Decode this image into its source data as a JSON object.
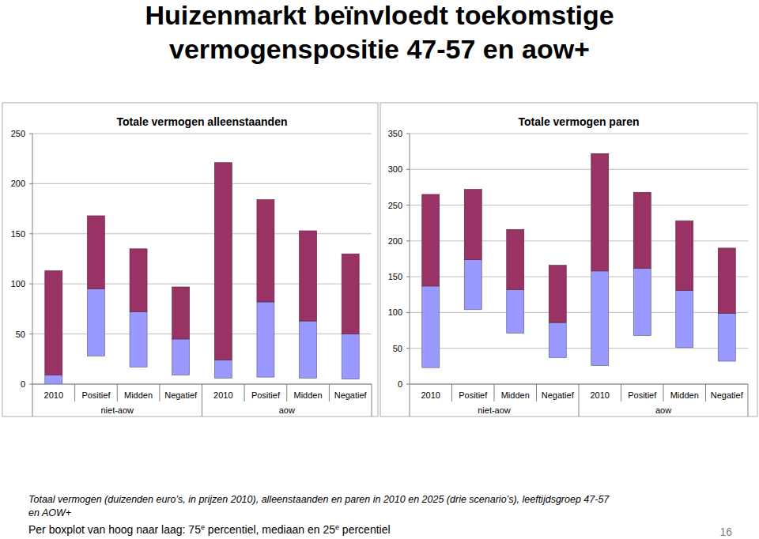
{
  "slide": {
    "title": [
      "Huizenmarkt beïnvloedt toekomstige",
      "vermogenspositie 47-57 en aow+"
    ],
    "caption": [
      "Totaal vermogen (duizenden euro’s, in prijzen 2010), alleenstaanden en paren in 2010 en 2025 (drie scenario’s), leeftijdsgroep 47-57",
      "en AOW+"
    ],
    "caption_note": [
      {
        "text": "Per boxplot van hoog naar laag: 75"
      },
      {
        "text": "e",
        "sup": true
      },
      {
        "text": " percentiel, mediaan en 25"
      },
      {
        "text": "e",
        "sup": true
      },
      {
        "text": " percentiel"
      }
    ],
    "page_number": 16
  },
  "chart_data": [
    {
      "type": "box",
      "title": "Totale vermogen alleenstaanden",
      "categories": [
        "2010",
        "Positief",
        "Midden",
        "Negatief",
        "2010",
        "Positief",
        "Midden",
        "Negatief"
      ],
      "groups": [
        "niet-aow",
        "aow"
      ],
      "q1": [
        0,
        28,
        17,
        9,
        6,
        7,
        6,
        5
      ],
      "median": [
        9,
        95,
        72,
        45,
        24,
        82,
        63,
        50
      ],
      "q3": [
        113,
        168,
        135,
        97,
        221,
        184,
        153,
        130
      ],
      "colors": [
        "#9999ff",
        "#993366"
      ],
      "ylim": [
        0,
        250
      ],
      "yticks": [
        0,
        50,
        100,
        150,
        200,
        250
      ],
      "grid": true
    },
    {
      "type": "box",
      "title": "Totale vermogen paren",
      "categories": [
        "2010",
        "Positief",
        "Midden",
        "Negatief",
        "2010",
        "Positief",
        "Midden",
        "Negatief"
      ],
      "groups": [
        "niet-aow",
        "aow"
      ],
      "q1": [
        23,
        104,
        71,
        37,
        26,
        68,
        51,
        32
      ],
      "median": [
        137,
        174,
        132,
        86,
        158,
        162,
        131,
        99
      ],
      "q3": [
        265,
        272,
        216,
        166,
        322,
        268,
        228,
        190
      ],
      "colors": [
        "#9999ff",
        "#993366"
      ],
      "ylim": [
        0,
        350
      ],
      "yticks": [
        0,
        50,
        100,
        150,
        200,
        250,
        300,
        350
      ],
      "grid": true
    }
  ]
}
